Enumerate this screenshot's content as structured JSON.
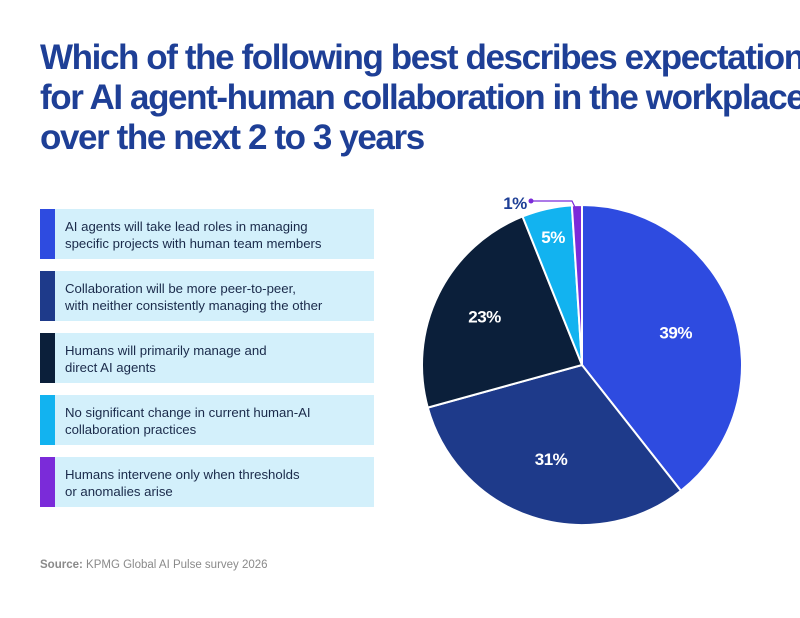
{
  "title_lines": [
    "Which of the following best describes expectations",
    "for AI agent-human collaboration in the workplace",
    "over the next 2 to 3 years"
  ],
  "source": {
    "label": "Source:",
    "text": "KPMG Global AI Pulse survey 2026"
  },
  "chart_data": {
    "type": "pie",
    "slices": [
      {
        "label_lines": [
          "AI agents will take lead roles in managing",
          "specific projects with human team members"
        ],
        "value": 39,
        "value_label": "39%",
        "color": "#2e4be0"
      },
      {
        "label_lines": [
          "Collaboration will be more peer-to-peer,",
          "with neither consistently managing the other"
        ],
        "value": 31,
        "value_label": "31%",
        "color": "#1e3a8a"
      },
      {
        "label_lines": [
          "Humans will primarily manage and",
          "direct AI agents"
        ],
        "value": 23,
        "value_label": "23%",
        "color": "#0b1f3a"
      },
      {
        "label_lines": [
          "No significant change in current human-AI",
          "collaboration practices"
        ],
        "value": 5,
        "value_label": "5%",
        "color": "#12b3f0"
      },
      {
        "label_lines": [
          "Humans intervene only when thresholds",
          "or anomalies arise"
        ],
        "value": 1,
        "value_label": "1%",
        "color": "#7b2bd9"
      }
    ]
  }
}
